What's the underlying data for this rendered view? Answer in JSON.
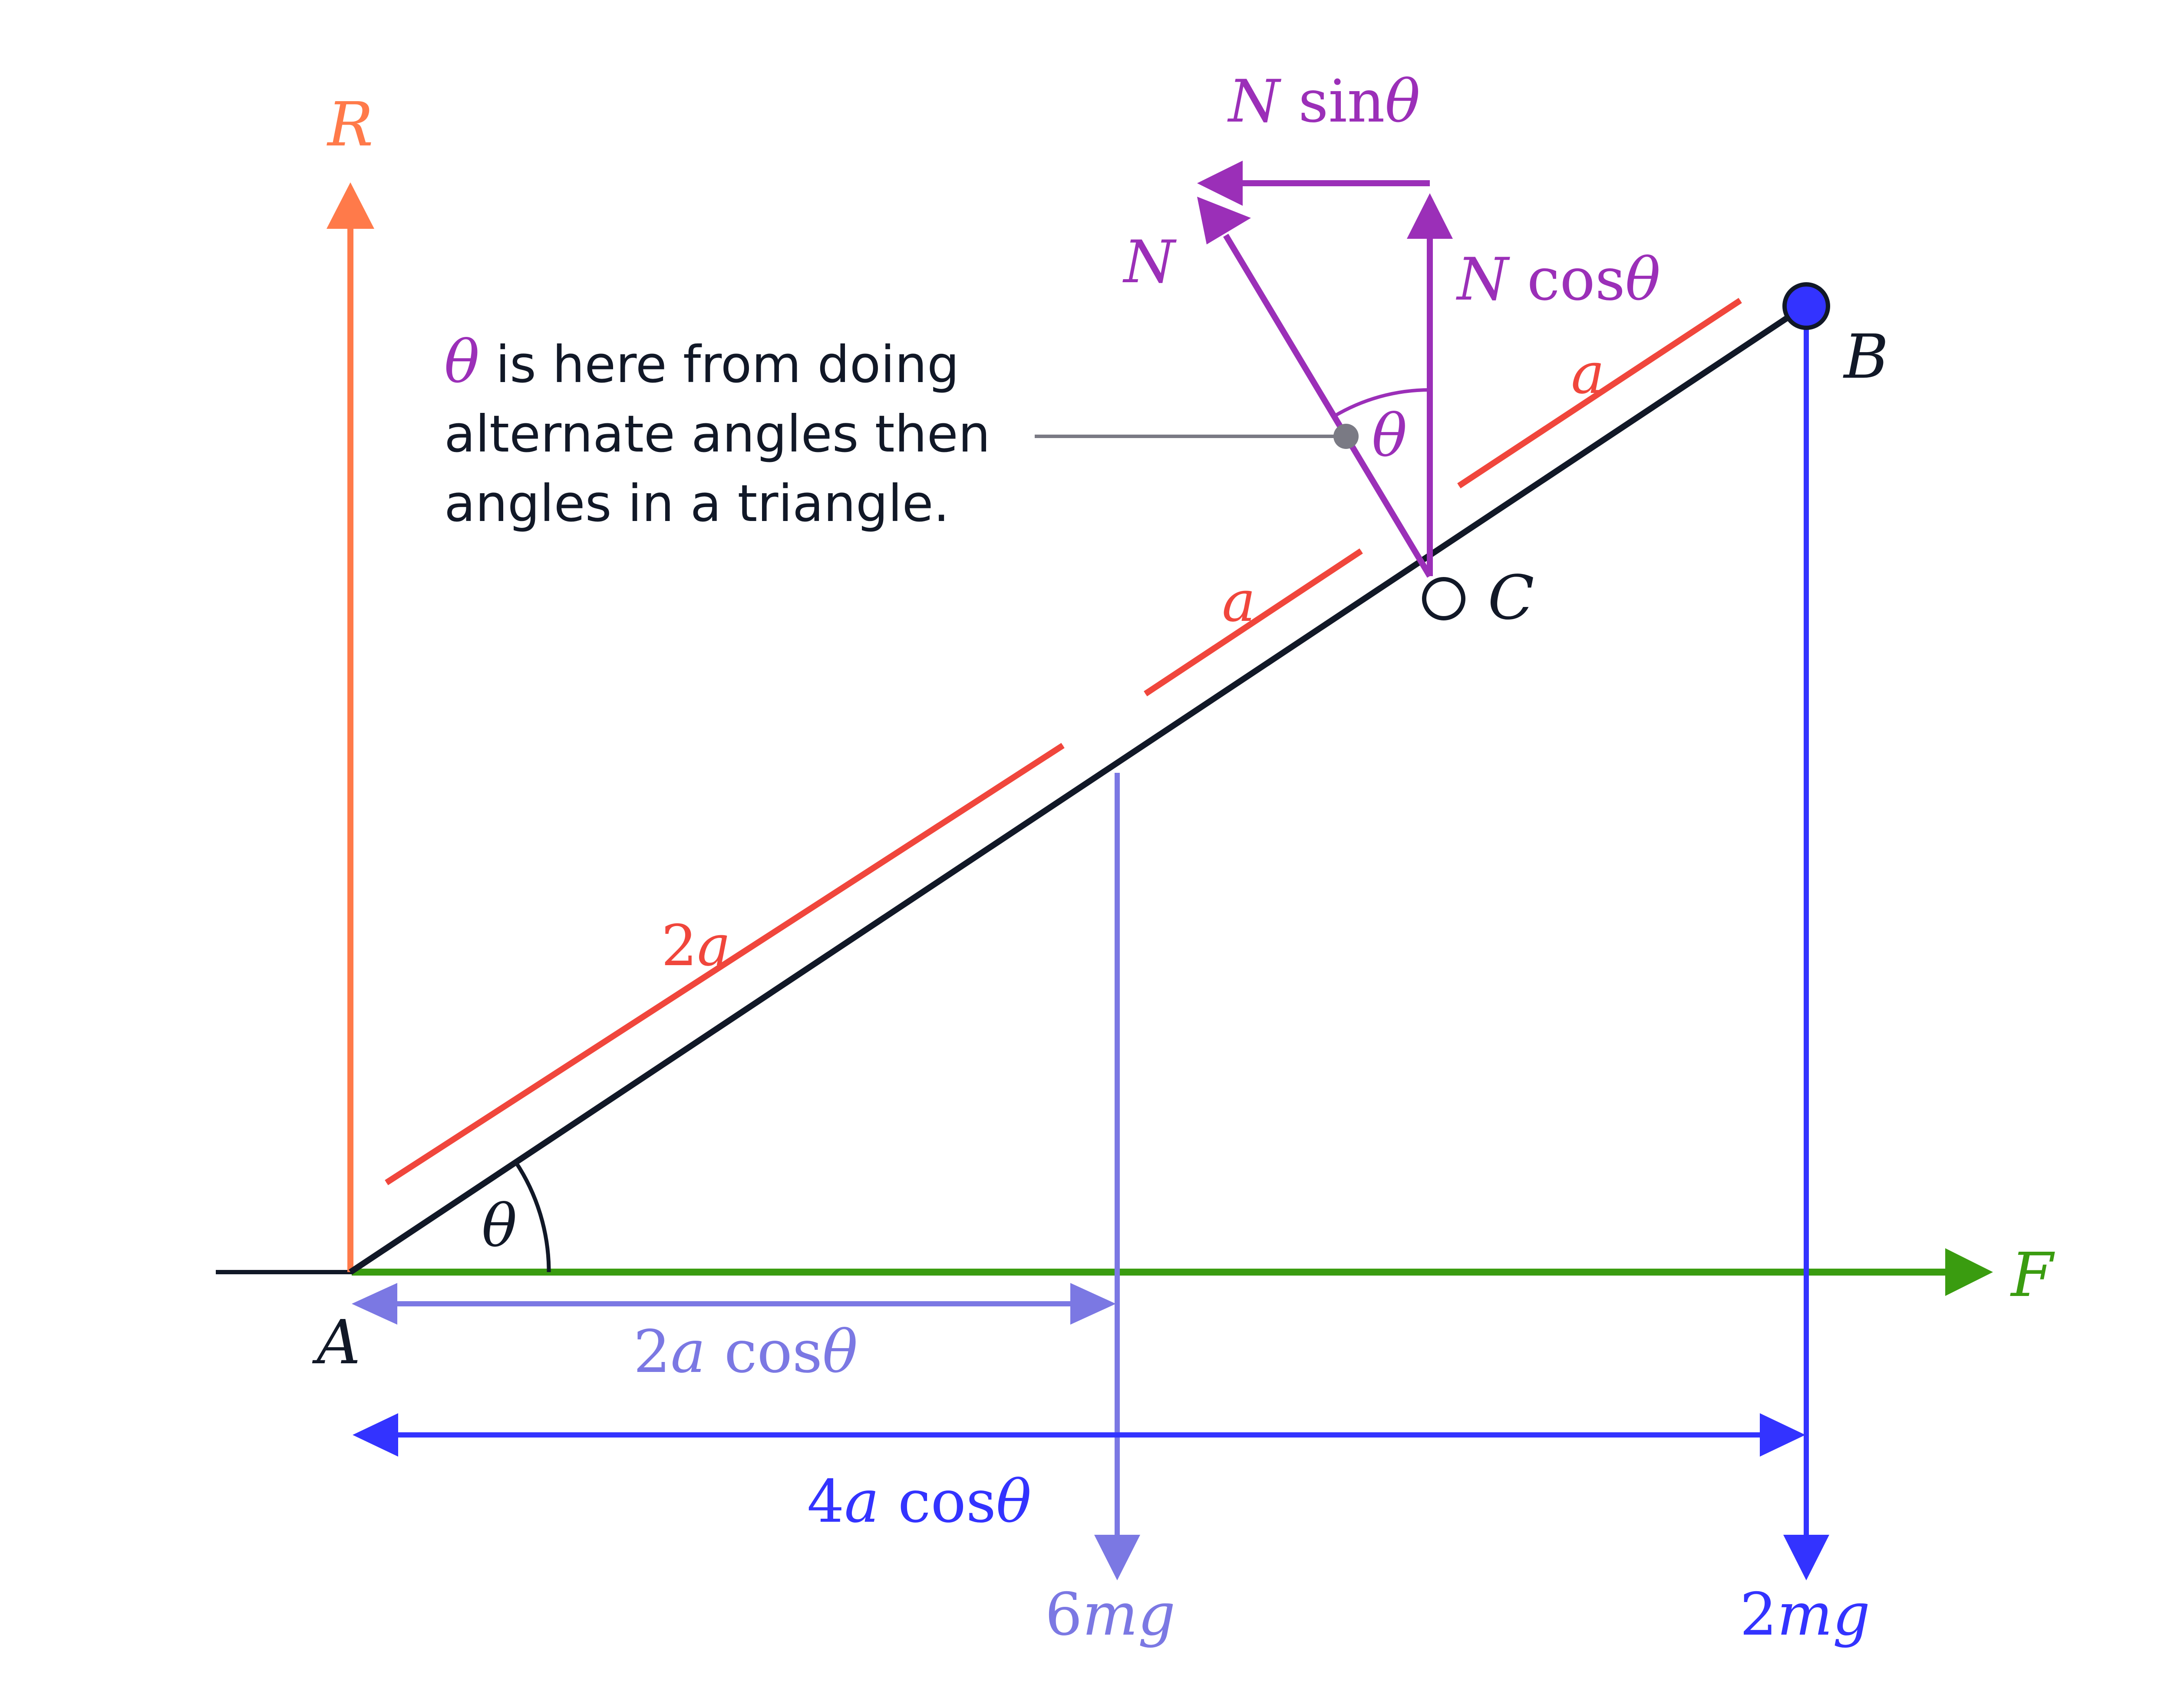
{
  "labels": {
    "R": "R",
    "F": "F",
    "A": "A",
    "B": "B",
    "C": "C",
    "N": "N",
    "theta_A": "θ",
    "theta_N": "θ",
    "N_sin_pre": "N ",
    "N_sin_fn": "sin",
    "N_sin_theta": "θ",
    "N_cos_pre": "N ",
    "N_cos_fn": "cos",
    "N_cos_theta": "θ",
    "a_upper": "a",
    "a_middle": "a",
    "two_a_num": "2",
    "two_a_var": "a",
    "dist2_num": "2",
    "dist2_var": "a",
    "dist2_fn": " cos",
    "dist2_theta": "θ",
    "dist4_num": "4",
    "dist4_var": "a",
    "dist4_fn": " cos",
    "dist4_theta": "θ",
    "w6_num": "6",
    "w6_var": "mg",
    "w2_num": "2",
    "w2_var": "mg"
  },
  "note": {
    "theta": "θ",
    "line1": " is here from doing",
    "line2": "alternate angles then",
    "line3": "angles in a triangle."
  },
  "colors": {
    "rod": "#111827",
    "R": "#ff7a4a",
    "F": "#3a9c10",
    "lengths": "#f0463c",
    "normal": "#9b2fb8",
    "weight_mid": "#7b78e3",
    "weight_end": "#3333ff",
    "leader": "#7a7a84"
  }
}
